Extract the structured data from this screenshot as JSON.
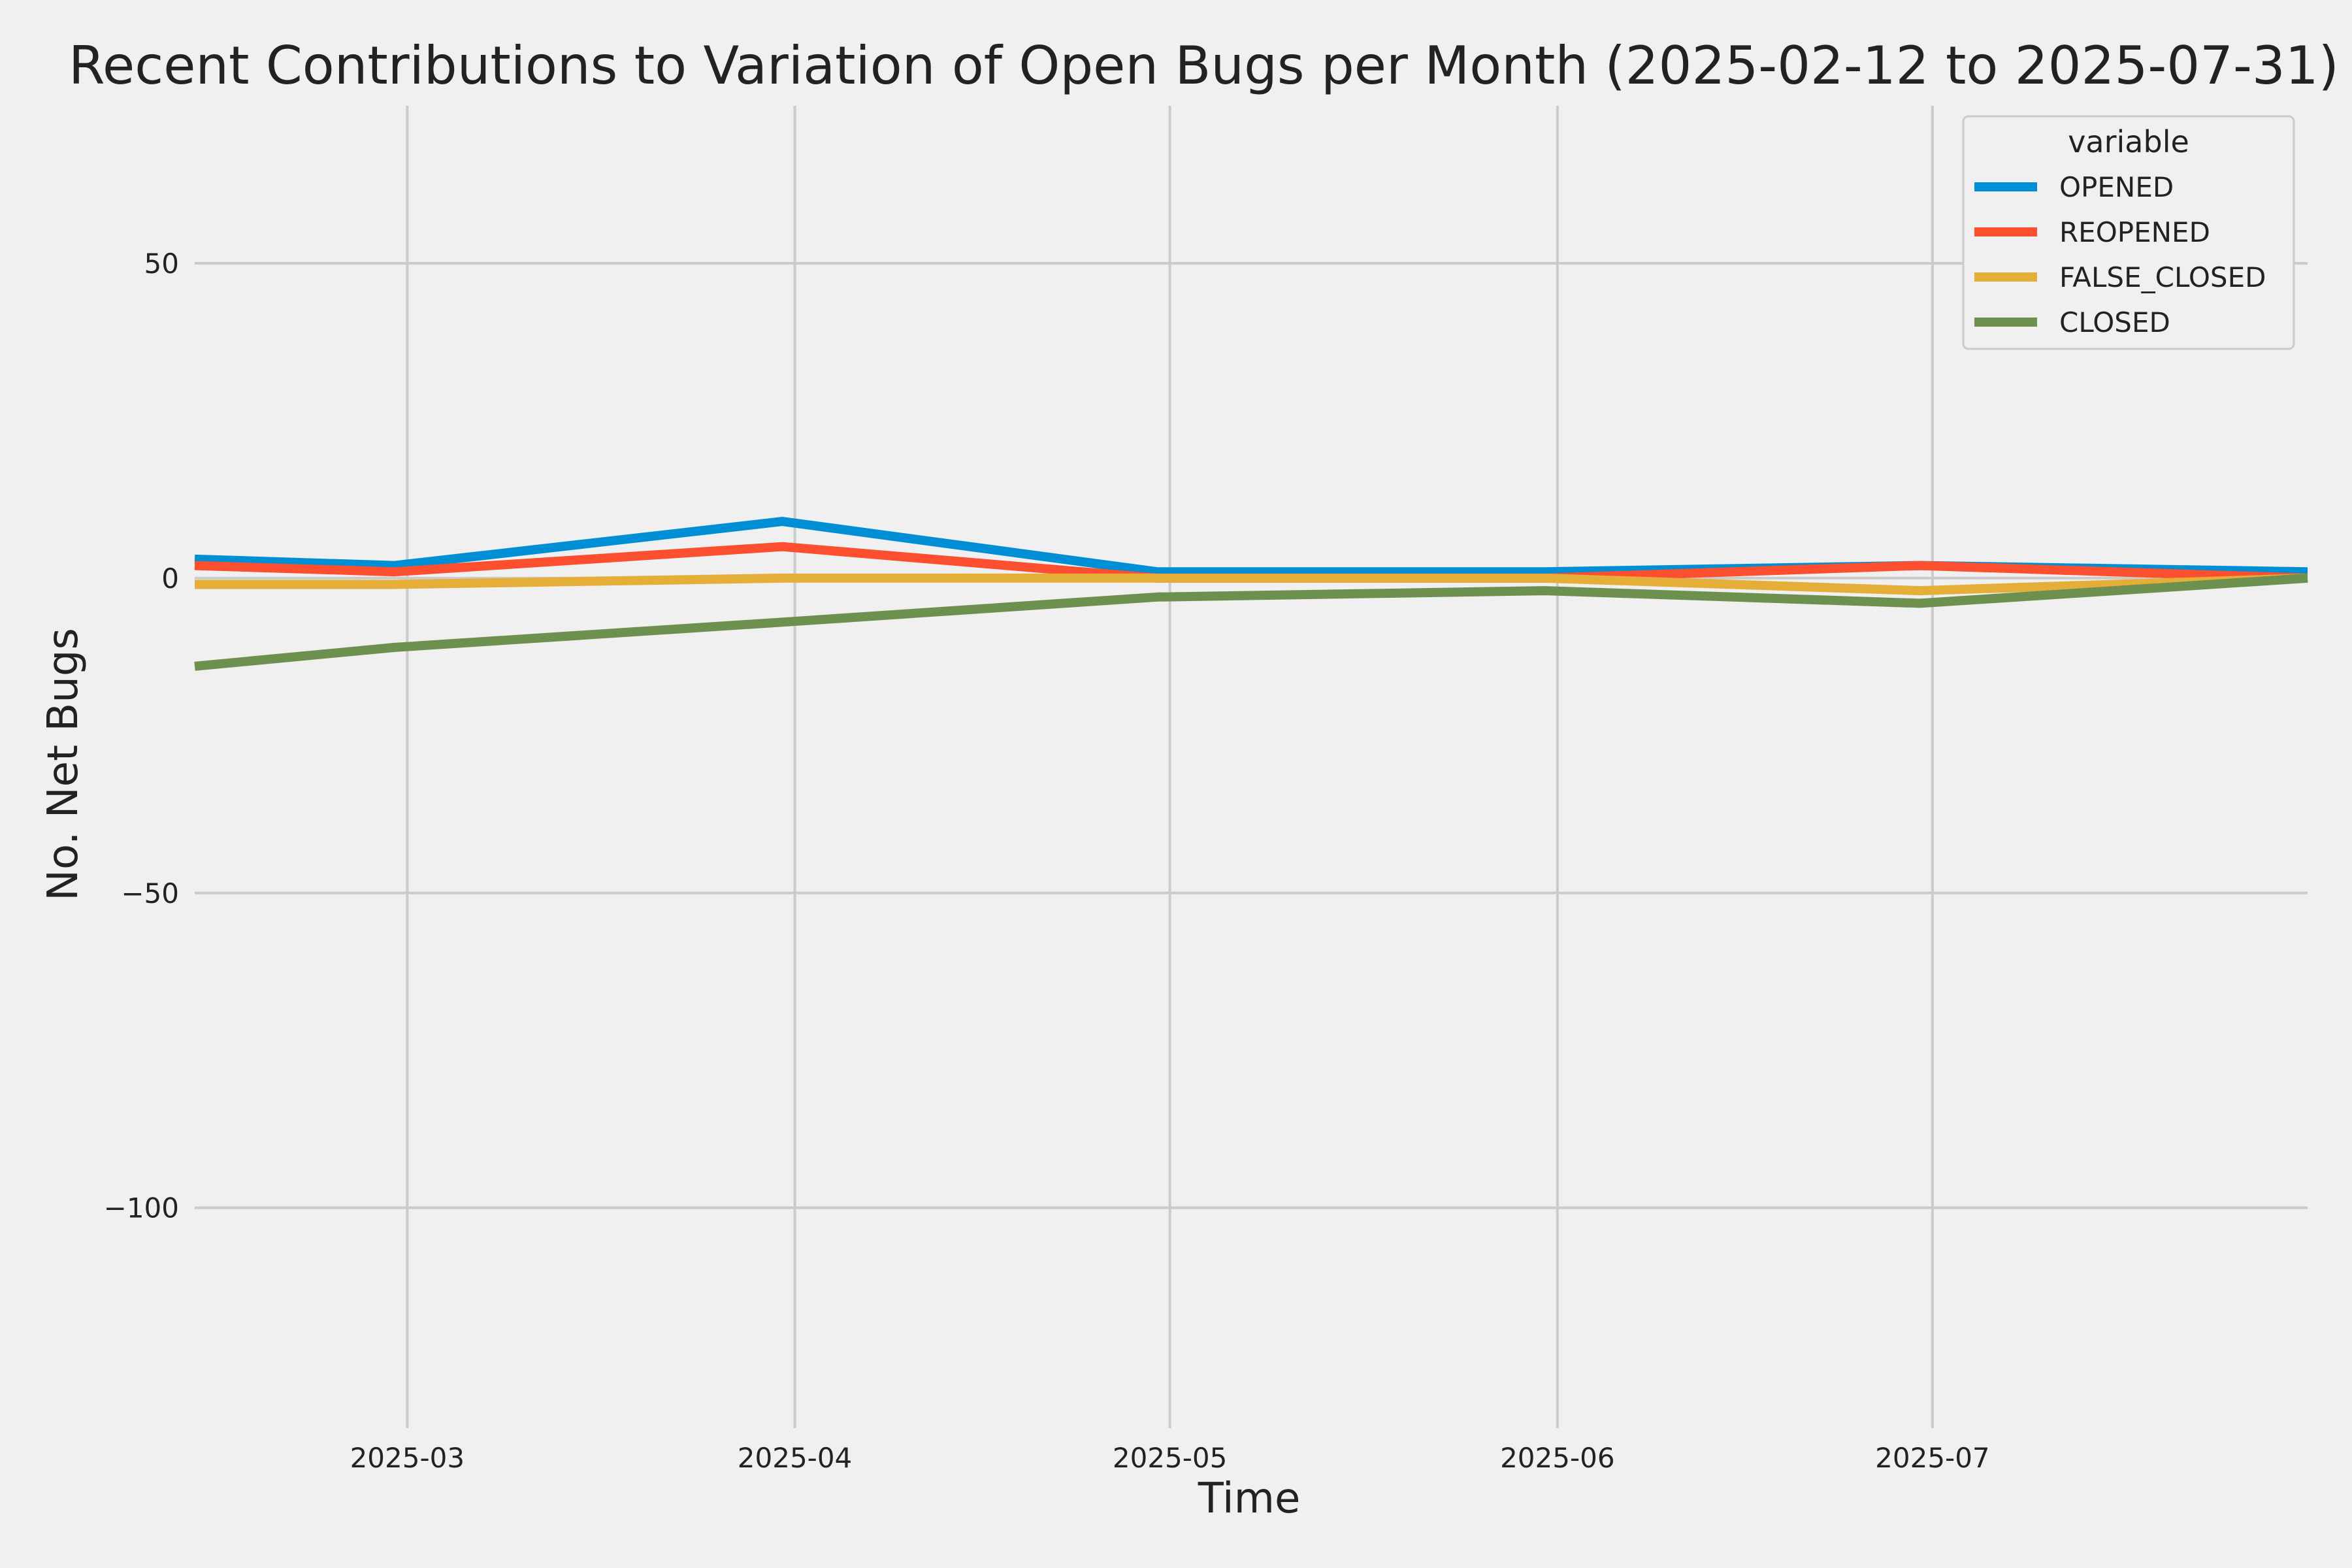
{
  "chart_data": {
    "type": "line",
    "title": "Recent Contributions to Variation of Open Bugs per Month (2025-02-12 to 2025-07-31)",
    "xlabel": "Time",
    "ylabel": "No. Net Bugs",
    "x": [
      "2025-02-12",
      "2025-02-28",
      "2025-03-31",
      "2025-04-30",
      "2025-05-31",
      "2025-06-30",
      "2025-07-31"
    ],
    "x_ticks": [
      "2025-03",
      "2025-04",
      "2025-05",
      "2025-06",
      "2025-07"
    ],
    "xlim": [
      "2025-02-12",
      "2025-07-31"
    ],
    "y_ticks": [
      50,
      0,
      -50,
      -100
    ],
    "y_tick_labels": [
      "50",
      "0",
      "−50",
      "−100"
    ],
    "ylim": [
      -135,
      75
    ],
    "grid": true,
    "legend": {
      "title": "variable",
      "placement": "top-right"
    },
    "series": [
      {
        "name": "OPENED",
        "color": "#008fd5",
        "values": [
          3,
          2,
          9,
          1,
          1,
          2,
          1
        ]
      },
      {
        "name": "REOPENED",
        "color": "#fc4f30",
        "values": [
          2,
          1,
          5,
          0,
          0,
          2,
          0
        ]
      },
      {
        "name": "FALSE_CLOSED",
        "color": "#e5ae38",
        "values": [
          -1,
          -1,
          0,
          0,
          0,
          -2,
          0
        ]
      },
      {
        "name": "CLOSED",
        "color": "#6d904f",
        "values": [
          -14,
          -11,
          -7,
          -3,
          -2,
          -4,
          0
        ]
      }
    ]
  }
}
